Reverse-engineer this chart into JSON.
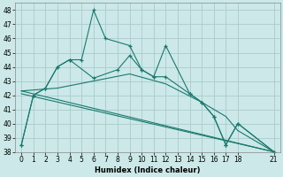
{
  "xlabel": "Humidex (Indice chaleur)",
  "xlim": [
    -0.5,
    21.5
  ],
  "ylim": [
    38,
    48.5
  ],
  "yticks": [
    38,
    39,
    40,
    41,
    42,
    43,
    44,
    45,
    46,
    47,
    48
  ],
  "xticks": [
    0,
    1,
    2,
    3,
    4,
    5,
    6,
    7,
    8,
    9,
    10,
    11,
    12,
    13,
    14,
    15,
    16,
    17,
    18,
    21
  ],
  "background_color": "#cce8e8",
  "grid_color": "#aacccc",
  "line_color": "#1a7a6e",
  "lines": [
    {
      "x": [
        0,
        1,
        2,
        3,
        4,
        5,
        6,
        7,
        9,
        10,
        11,
        12,
        14,
        15,
        16,
        17,
        18,
        21
      ],
      "y": [
        38.5,
        42,
        42.5,
        44,
        44.5,
        44.5,
        48,
        46,
        45.5,
        43.8,
        43.3,
        45.5,
        42.1,
        41.5,
        40.5,
        38.5,
        40,
        38
      ],
      "marker": true
    },
    {
      "x": [
        0,
        1,
        2,
        3,
        4,
        6,
        8,
        9,
        10,
        11,
        12,
        14,
        15,
        16,
        17,
        18,
        21
      ],
      "y": [
        38.5,
        42,
        42.5,
        44,
        44.5,
        43.2,
        43.8,
        44.8,
        43.8,
        43.3,
        43.3,
        42.1,
        41.5,
        40.5,
        38.5,
        40,
        38
      ],
      "marker": true
    },
    {
      "x": [
        0,
        3,
        6,
        9,
        12,
        15,
        17,
        18,
        21
      ],
      "y": [
        42.3,
        42.5,
        43.0,
        43.5,
        42.8,
        41.5,
        40.5,
        39.5,
        38
      ],
      "marker": false
    },
    {
      "x": [
        0,
        21
      ],
      "y": [
        42.1,
        38
      ],
      "marker": false
    },
    {
      "x": [
        0,
        21
      ],
      "y": [
        42.3,
        38
      ],
      "marker": false
    }
  ]
}
